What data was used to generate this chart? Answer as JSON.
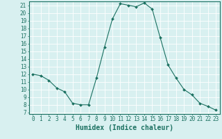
{
  "x": [
    0,
    1,
    2,
    3,
    4,
    5,
    6,
    7,
    8,
    9,
    10,
    11,
    12,
    13,
    14,
    15,
    16,
    17,
    18,
    19,
    20,
    21,
    22,
    23
  ],
  "y": [
    12.0,
    11.8,
    11.2,
    10.2,
    9.7,
    8.2,
    8.0,
    8.0,
    11.5,
    15.5,
    19.2,
    21.2,
    21.0,
    20.8,
    21.3,
    20.5,
    16.8,
    13.2,
    11.5,
    10.0,
    9.3,
    8.2,
    7.8,
    7.3
  ],
  "line_color": "#1a7060",
  "marker": "D",
  "marker_size": 2,
  "bg_color": "#d8f0f0",
  "grid_color": "#ffffff",
  "xlabel": "Humidex (Indice chaleur)",
  "xlim": [
    -0.5,
    23.5
  ],
  "ylim": [
    6.8,
    21.5
  ],
  "yticks": [
    7,
    8,
    9,
    10,
    11,
    12,
    13,
    14,
    15,
    16,
    17,
    18,
    19,
    20,
    21
  ],
  "xticks": [
    0,
    1,
    2,
    3,
    4,
    5,
    6,
    7,
    8,
    9,
    10,
    11,
    12,
    13,
    14,
    15,
    16,
    17,
    18,
    19,
    20,
    21,
    22,
    23
  ],
  "tick_labelsize": 5.5,
  "xlabel_fontsize": 7
}
